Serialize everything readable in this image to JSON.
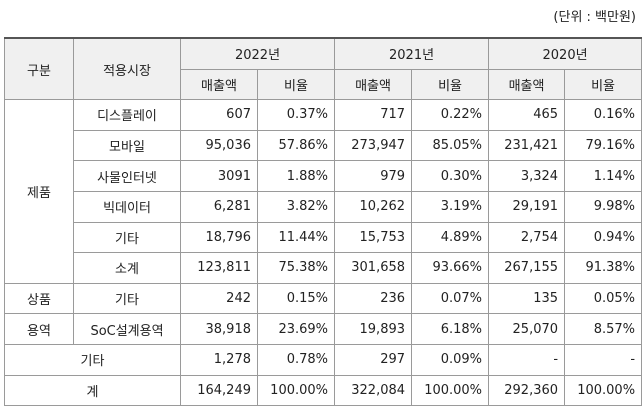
{
  "unit": "(단위 : 백만원)",
  "table": {
    "header": {
      "group": "구분",
      "market": "적용시장",
      "years": [
        {
          "year": "2022년",
          "sub": [
            "매출액",
            "비율"
          ]
        },
        {
          "year": "2021년",
          "sub": [
            "매출액",
            "비율"
          ]
        },
        {
          "year": "2020년",
          "sub": [
            "매출액",
            "비율"
          ]
        }
      ]
    },
    "groups": [
      {
        "name": "제품",
        "rows": [
          {
            "market": "디스플레이",
            "cells": [
              "607",
              "0.37%",
              "717",
              "0.22%",
              "465",
              "0.16%"
            ]
          },
          {
            "market": "모바일",
            "cells": [
              "95,036",
              "57.86%",
              "273,947",
              "85.05%",
              "231,421",
              "79.16%"
            ]
          },
          {
            "market": "사물인터넷",
            "cells": [
              "3091",
              "1.88%",
              "979",
              "0.30%",
              "3,324",
              "1.14%"
            ]
          },
          {
            "market": "빅데이터",
            "cells": [
              "6,281",
              "3.82%",
              "10,262",
              "3.19%",
              "29,191",
              "9.98%"
            ]
          },
          {
            "market": "기타",
            "cells": [
              "18,796",
              "11.44%",
              "15,753",
              "4.89%",
              "2,754",
              "0.94%"
            ]
          },
          {
            "market": "소계",
            "cells": [
              "123,811",
              "75.38%",
              "301,658",
              "93.66%",
              "267,155",
              "91.38%"
            ]
          }
        ]
      },
      {
        "name": "상품",
        "rows": [
          {
            "market": "기타",
            "cells": [
              "242",
              "0.15%",
              "236",
              "0.07%",
              "135",
              "0.05%"
            ]
          }
        ]
      },
      {
        "name": "용역",
        "rows": [
          {
            "market": "SoC설계용역",
            "cells": [
              "38,918",
              "23.69%",
              "19,893",
              "6.18%",
              "25,070",
              "8.57%"
            ]
          }
        ]
      },
      {
        "name": "기타",
        "rows": [
          {
            "cells": [
              "1,278",
              "0.78%",
              "297",
              "0.09%",
              "-",
              "-"
            ]
          }
        ]
      },
      {
        "name": "계",
        "rows": [
          {
            "cells": [
              "164,249",
              "100.00%",
              "322,084",
              "100.00%",
              "292,360",
              "100.00%"
            ]
          }
        ]
      }
    ]
  }
}
